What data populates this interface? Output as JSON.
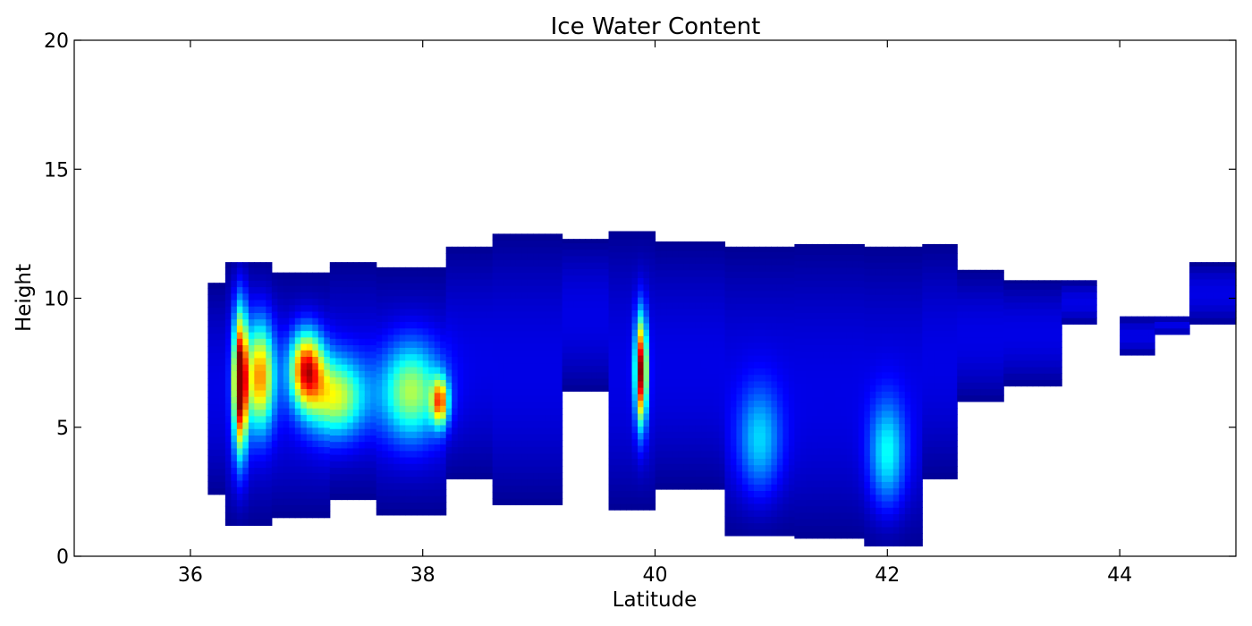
{
  "chart_data": {
    "type": "heatmap",
    "title": "Ice Water Content",
    "xlabel": "Latitude",
    "ylabel": "Height",
    "xlim": [
      35,
      45
    ],
    "ylim": [
      0,
      20
    ],
    "xticks": [
      36,
      38,
      40,
      42,
      44
    ],
    "yticks": [
      0,
      5,
      10,
      15,
      20
    ],
    "colormap": "jet",
    "grid": false,
    "cloud_columns": [
      {
        "lat_start": 36.15,
        "lat_end": 36.3,
        "base": 2.4,
        "top": 10.6
      },
      {
        "lat_start": 36.3,
        "lat_end": 36.7,
        "base": 1.2,
        "top": 11.4
      },
      {
        "lat_start": 36.7,
        "lat_end": 37.2,
        "base": 1.5,
        "top": 11.0
      },
      {
        "lat_start": 37.2,
        "lat_end": 37.6,
        "base": 2.2,
        "top": 11.4
      },
      {
        "lat_start": 37.6,
        "lat_end": 38.2,
        "base": 1.6,
        "top": 11.2
      },
      {
        "lat_start": 38.2,
        "lat_end": 38.6,
        "base": 3.0,
        "top": 12.0
      },
      {
        "lat_start": 38.6,
        "lat_end": 39.2,
        "base": 2.0,
        "top": 12.5
      },
      {
        "lat_start": 39.2,
        "lat_end": 39.6,
        "base": 6.4,
        "top": 12.3
      },
      {
        "lat_start": 39.6,
        "lat_end": 40.0,
        "base": 1.8,
        "top": 12.6
      },
      {
        "lat_start": 40.0,
        "lat_end": 40.6,
        "base": 2.6,
        "top": 12.2
      },
      {
        "lat_start": 40.6,
        "lat_end": 41.2,
        "base": 0.8,
        "top": 12.0
      },
      {
        "lat_start": 41.2,
        "lat_end": 41.8,
        "base": 0.7,
        "top": 12.1
      },
      {
        "lat_start": 41.8,
        "lat_end": 42.3,
        "base": 0.4,
        "top": 12.0
      },
      {
        "lat_start": 42.3,
        "lat_end": 42.6,
        "base": 3.0,
        "top": 12.1
      },
      {
        "lat_start": 42.6,
        "lat_end": 43.0,
        "base": 6.0,
        "top": 11.1
      },
      {
        "lat_start": 43.0,
        "lat_end": 43.5,
        "base": 6.6,
        "top": 10.7
      },
      {
        "lat_start": 43.5,
        "lat_end": 43.8,
        "base": 9.0,
        "top": 10.7
      },
      {
        "lat_start": 44.0,
        "lat_end": 44.3,
        "base": 7.8,
        "top": 9.3
      },
      {
        "lat_start": 44.3,
        "lat_end": 44.6,
        "base": 8.6,
        "top": 9.3
      },
      {
        "lat_start": 44.6,
        "lat_end": 45.0,
        "base": 9.0,
        "top": 11.4
      }
    ],
    "hotspots": [
      {
        "lat": 36.43,
        "height": 6.8,
        "lat_width": 0.06,
        "height_width": 2.6,
        "value": 1.0
      },
      {
        "lat": 36.6,
        "height": 7.0,
        "lat_width": 0.12,
        "height_width": 2.0,
        "value": 0.65
      },
      {
        "lat": 37.0,
        "height": 7.3,
        "lat_width": 0.14,
        "height_width": 1.4,
        "value": 0.75
      },
      {
        "lat": 37.25,
        "height": 6.2,
        "lat_width": 0.25,
        "height_width": 1.5,
        "value": 0.5
      },
      {
        "lat": 37.9,
        "height": 6.4,
        "lat_width": 0.25,
        "height_width": 1.8,
        "value": 0.45
      },
      {
        "lat": 38.15,
        "height": 6.0,
        "lat_width": 0.07,
        "height_width": 0.9,
        "value": 0.6
      },
      {
        "lat": 39.88,
        "height": 7.2,
        "lat_width": 0.05,
        "height_width": 2.0,
        "value": 0.9
      },
      {
        "lat": 40.9,
        "height": 4.5,
        "lat_width": 0.18,
        "height_width": 2.0,
        "value": 0.25
      },
      {
        "lat": 42.0,
        "height": 4.0,
        "lat_width": 0.15,
        "height_width": 2.0,
        "value": 0.3
      }
    ]
  }
}
